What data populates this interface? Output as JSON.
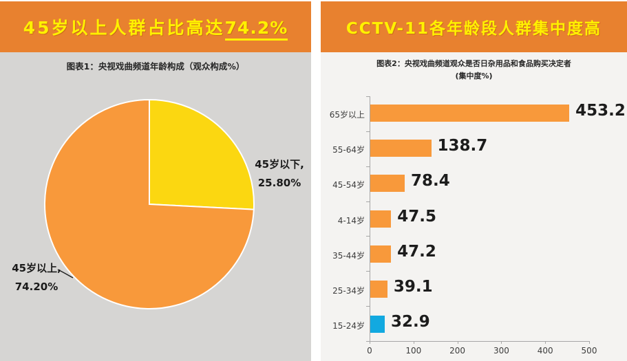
{
  "left_panel": {
    "banner_prefix": "45岁以上人群占比高达",
    "banner_highlight": "74.2%",
    "chart_title": "图表1：央视戏曲频道年龄构成（观众构成%）",
    "labels": {
      "slice_small_line1": "45岁以下,",
      "slice_small_line2": "25.80%",
      "slice_big_line1": "45岁以上,",
      "slice_big_line2": "74.20%"
    }
  },
  "right_panel": {
    "banner": "CCTV-11各年龄段人群集中度高",
    "chart_title_line1": "图表2：央视戏曲频道观众是否日杂用品和食品购买决定者",
    "chart_title_line2": "(集中度%)"
  },
  "colors": {
    "banner_background": "#E8812F",
    "banner_text": "#FFF100",
    "pie_yellow": "#FBD711",
    "pie_orange": "#F8993B",
    "bar_orange": "#F8993B",
    "bar_blue": "#12A9E0",
    "left_chart_background": "#D6D5D3",
    "right_chart_background": "#F4F3F1",
    "axis_gray": "#A6A6A6"
  },
  "chart_data": [
    {
      "type": "pie",
      "title": "图表1：央视戏曲频道年龄构成（观众构成%）",
      "slices": [
        {
          "label": "45岁以下",
          "value": 25.8,
          "color": "#FBD711"
        },
        {
          "label": "45岁以上",
          "value": 74.2,
          "color": "#F8993B"
        }
      ],
      "start_angle_deg": 0,
      "direction": "clockwise"
    },
    {
      "type": "bar",
      "orientation": "horizontal",
      "title": "图表2：央视戏曲频道观众是否日杂用品和食品购买决定者 (集中度%)",
      "categories": [
        "65岁以上",
        "55-64岁",
        "45-54岁",
        "4-14岁",
        "35-44岁",
        "25-34岁",
        "15-24岁"
      ],
      "values": [
        453.2,
        138.7,
        78.4,
        47.5,
        47.2,
        39.1,
        32.9
      ],
      "bar_colors": [
        "#F8993B",
        "#F8993B",
        "#F8993B",
        "#F8993B",
        "#F8993B",
        "#F8993B",
        "#12A9E0"
      ],
      "value_labels": [
        "453.2",
        "138.7",
        "78.4",
        "47.5",
        "47.2",
        "39.1",
        "32.9"
      ],
      "xlim": [
        0,
        500
      ],
      "x_ticks": [
        0,
        100,
        200,
        300,
        400,
        500
      ],
      "grid": false,
      "legend": false
    }
  ]
}
